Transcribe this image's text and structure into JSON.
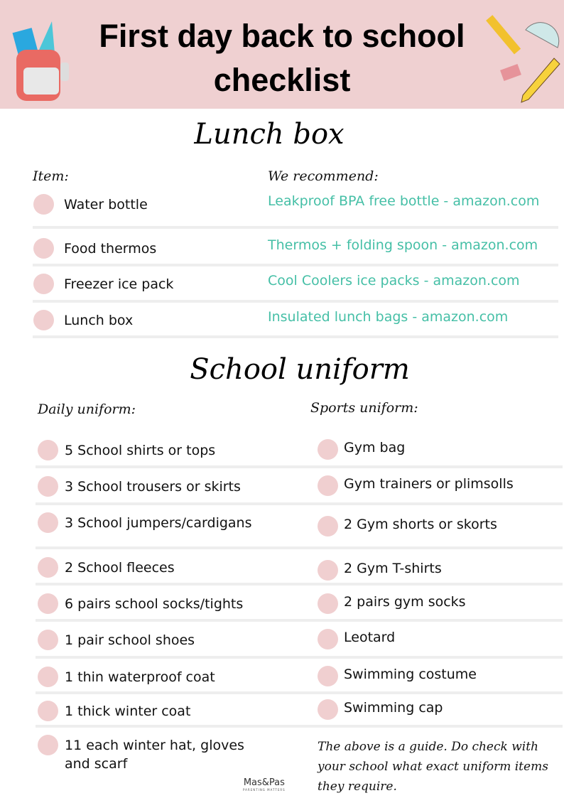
{
  "header": {
    "title_line1": "First day back to school",
    "title_line2": "checklist",
    "icons": [
      "backpack-icon",
      "ruler-icon",
      "protractor-icon",
      "eraser-icon",
      "pencil-icon"
    ]
  },
  "lunch": {
    "heading": "Lunch box",
    "col_item": "Item:",
    "col_rec": "We recommend:",
    "rows": [
      {
        "item": "Water bottle",
        "rec": "Leakproof BPA free bottle - amazon.com"
      },
      {
        "item": "Food thermos",
        "rec": "Thermos + folding spoon - amazon.com"
      },
      {
        "item": "Freezer ice pack",
        "rec": "Cool Coolers ice packs - amazon.com"
      },
      {
        "item": "Lunch box",
        "rec": "Insulated lunch bags - amazon.com"
      }
    ]
  },
  "uniform": {
    "heading": "School uniform",
    "daily_label": "Daily uniform:",
    "sports_label": "Sports uniform:",
    "daily": [
      "5 School shirts or tops",
      "3 School trousers or skirts",
      "3 School jumpers/cardigans",
      "2 School fleeces",
      "6 pairs school socks/tights",
      "1 pair school shoes",
      "1 thin waterproof coat",
      "1 thick winter coat",
      "11 each winter hat, gloves and scarf"
    ],
    "sports": [
      "Gym bag",
      "Gym trainers or plimsolls",
      "2 Gym shorts or skorts",
      "2 Gym T-shirts",
      "2 pairs gym socks",
      "Leotard",
      "Swimming costume",
      "Swimming cap"
    ],
    "note": "The above is a guide. Do check with your school what exact uniform items they require."
  },
  "logo": {
    "name": "Mas&Pas",
    "tagline": "PARENTING MATTERS"
  },
  "colors": {
    "header_bg": "#efd0d1",
    "checkbox": "#f0cfd0",
    "link": "#45bfa6"
  }
}
